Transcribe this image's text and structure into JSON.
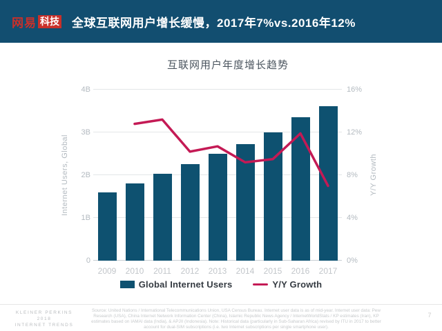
{
  "header": {
    "logo": {
      "brand": "网易",
      "sub": "科技"
    },
    "title": "全球互联网用户增长缓慢，2017年7%vs.2016年12%"
  },
  "chart_data": {
    "type": "bar",
    "title": "互联网用户年度增长趋势",
    "categories": [
      "2009",
      "2010",
      "2011",
      "2012",
      "2013",
      "2014",
      "2015",
      "2016",
      "2017"
    ],
    "series": [
      {
        "name": "Global Internet Users",
        "type": "bar",
        "axis": "left",
        "unit": "B",
        "color": "#0e5170",
        "values": [
          1.6,
          1.8,
          2.04,
          2.26,
          2.5,
          2.73,
          3.0,
          3.35,
          3.61
        ]
      },
      {
        "name": "Y/Y Growth",
        "type": "line",
        "axis": "right",
        "unit": "%",
        "color": "#c41a55",
        "values": [
          null,
          12.8,
          13.2,
          10.2,
          10.7,
          9.2,
          9.5,
          11.9,
          7.0
        ]
      }
    ],
    "left_axis": {
      "label": "Internet Users, Global",
      "ticks": [
        "0",
        "1B",
        "2B",
        "3B",
        "4B"
      ],
      "range": [
        0,
        4
      ]
    },
    "right_axis": {
      "label": "Y/Y Growth",
      "ticks": [
        "0%",
        "4%",
        "8%",
        "12%",
        "16%"
      ],
      "range": [
        0,
        16
      ]
    },
    "grid": true,
    "legend_position": "bottom"
  },
  "footer": {
    "brand_lines": [
      "KLEINER PERKINS",
      "2018",
      "INTERNET TRENDS"
    ],
    "source": "Source: United Nations / International Telecommunications Union, USA Census Bureau. Internet user data is as of mid-year. Internet user data: Pew Research (USA), China Internet Network Information Center (China), Islamic Republic News Agency / InternetWorldStats / KP estimates (Iran), KP estimates based on IAMAI data (India), & APJII (Indonesia). Note: Historical data (particularly in Sub-Saharan Africa) revised by ITU in 2017 to better account for dual-SIM subscriptions (i.e. two Internet subscriptions per single smartphone user).",
    "page_number": "7"
  }
}
